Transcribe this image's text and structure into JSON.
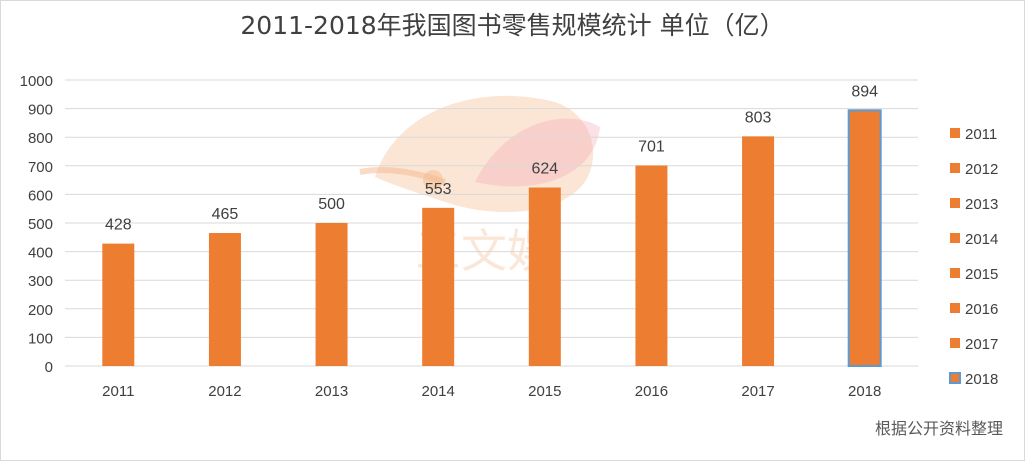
{
  "chart_data": {
    "type": "bar",
    "title": "2011-2018年我国图书零售规模统计 单位（亿）",
    "categories": [
      "2011",
      "2012",
      "2013",
      "2014",
      "2015",
      "2016",
      "2017",
      "2018"
    ],
    "values": [
      428,
      465,
      500,
      553,
      624,
      701,
      803,
      894
    ],
    "data_labels": [
      "428",
      "465",
      "500",
      "553",
      "624",
      "701",
      "803",
      "894"
    ],
    "xlabel": "",
    "ylabel": "",
    "ylim": [
      0,
      1000
    ],
    "y_ticks": [
      "0",
      "100",
      "200",
      "300",
      "400",
      "500",
      "600",
      "700",
      "800",
      "900",
      "1000"
    ],
    "grid": true,
    "legend": {
      "placement": "right",
      "entries": [
        "2011",
        "2012",
        "2013",
        "2014",
        "2015",
        "2016",
        "2017",
        "2018"
      ]
    },
    "colors": {
      "bar": "#ED7D31",
      "highlight_outline": "#5B9BD5",
      "grid": "#d9d9d9"
    },
    "highlighted_category": "2018"
  },
  "watermark_text": "三文娱",
  "source_note": "根据公开资料整理"
}
